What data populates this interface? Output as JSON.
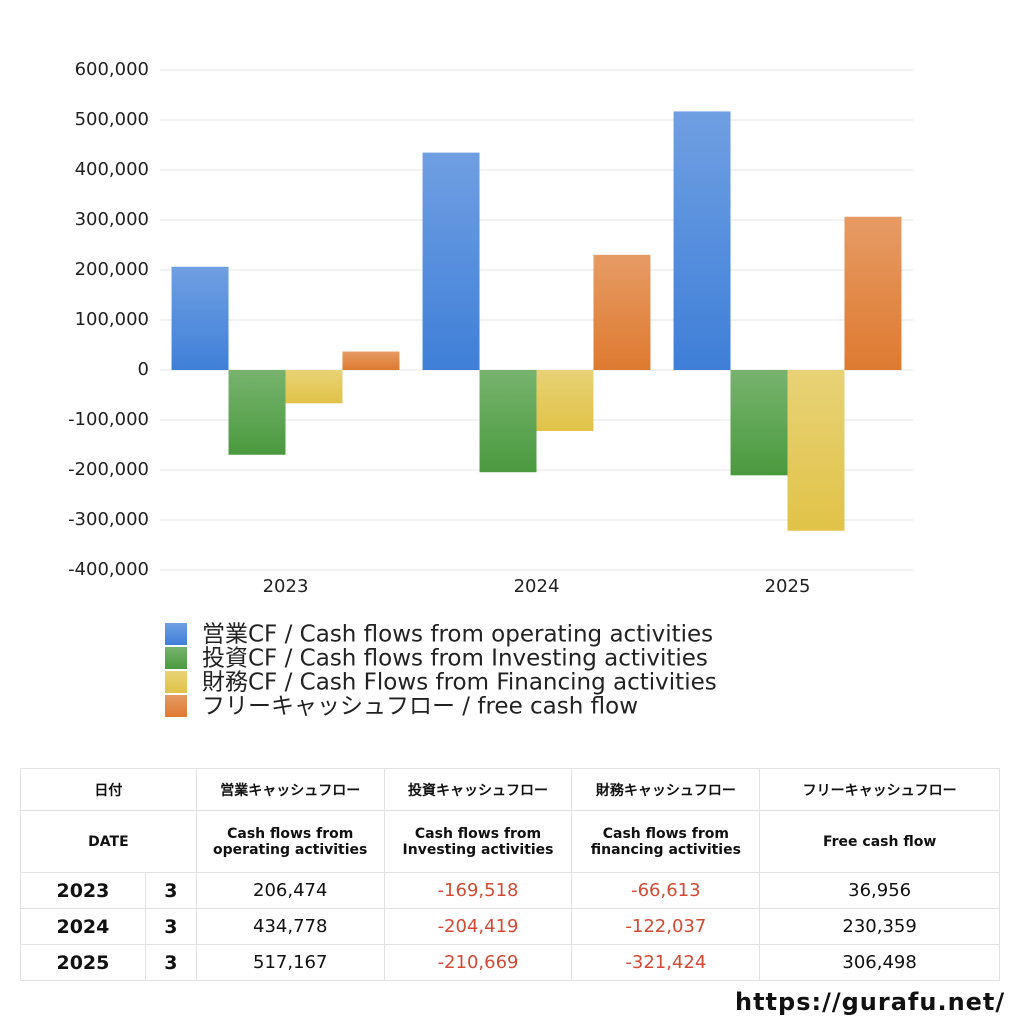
{
  "chart_data": {
    "type": "bar",
    "categories": [
      "2023",
      "2024",
      "2025"
    ],
    "series": [
      {
        "name": "営業CF / Cash flows from operating activities",
        "color": "#3f7fd8",
        "values": [
          206474,
          434778,
          517167
        ]
      },
      {
        "name": "投資CF / Cash flows from Investing activities",
        "color": "#4a9a3e",
        "values": [
          -169518,
          -204419,
          -210669
        ]
      },
      {
        "name": "財務CF / Cash Flows from Financing activities",
        "color": "#e0c348",
        "values": [
          -66613,
          -122037,
          -321424
        ]
      },
      {
        "name": "フリーキャッシュフロー / free cash flow",
        "color": "#de7a30",
        "values": [
          36956,
          230359,
          306498
        ]
      }
    ],
    "ylim": [
      -400000,
      600000
    ],
    "yticks": [
      {
        "value": -400000,
        "label": "-400,000"
      },
      {
        "value": -300000,
        "label": "-300,000"
      },
      {
        "value": -200000,
        "label": "-200,000"
      },
      {
        "value": -100000,
        "label": "-100,000"
      },
      0,
      {
        "value": 100000,
        "label": "100,000"
      },
      {
        "value": 200000,
        "label": "200,000"
      },
      {
        "value": 300000,
        "label": "300,000"
      },
      {
        "value": 400000,
        "label": "400,000"
      },
      {
        "value": 500000,
        "label": "500,000"
      },
      {
        "value": 600000,
        "label": "600,000"
      }
    ],
    "grid": true
  },
  "table": {
    "header": [
      [
        "日付",
        "営業キャッシュフロー",
        "投資キャッシュフロー",
        "財務キャッシュフロー",
        "フリーキャッシュフロー"
      ],
      [
        "DATE",
        "Cash flows from\noperating activities",
        "Cash flows from\nInvesting activities",
        "Cash flows from\nfinancing activities",
        "Free cash flow"
      ]
    ],
    "rows": [
      [
        "2023",
        "3",
        "206,474",
        "-169,518",
        "-66,613",
        "36,956"
      ],
      [
        "2024",
        "3",
        "434,778",
        "-204,419",
        "-122,037",
        "230,359"
      ],
      [
        "2025",
        "3",
        "517,167",
        "-210,669",
        "-321,424",
        "306,498"
      ]
    ]
  },
  "footer": "https://gurafu.net/"
}
